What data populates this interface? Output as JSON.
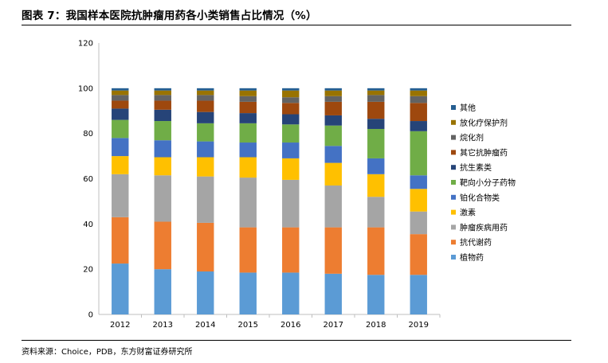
{
  "title": "图表 7：我国样本医院抗肿瘤用药各小类销售占比情况（%）",
  "source": "资料来源：Choice，PDB，东方财富证券研究所",
  "chart_data": {
    "type": "bar",
    "stacked": true,
    "categories": [
      "2012",
      "2013",
      "2014",
      "2015",
      "2016",
      "2017",
      "2018",
      "2019"
    ],
    "ylim": [
      0,
      120
    ],
    "yticks": [
      "0",
      "20",
      "40",
      "60",
      "80",
      "100",
      "120"
    ],
    "grid": false,
    "legend_position": "right",
    "series": [
      {
        "name": "植物药",
        "color": "#5B9BD5",
        "values": [
          22.5,
          20.0,
          19.0,
          18.5,
          18.5,
          18.0,
          17.5,
          17.5
        ]
      },
      {
        "name": "抗代谢药",
        "color": "#ED7D31",
        "values": [
          20.5,
          21.0,
          21.5,
          20.0,
          20.0,
          20.5,
          21.0,
          18.0
        ]
      },
      {
        "name": "肿瘤疾病用药",
        "color": "#A5A5A5",
        "values": [
          19.0,
          20.5,
          20.5,
          22.0,
          21.0,
          18.5,
          13.5,
          10.0
        ]
      },
      {
        "name": "激素",
        "color": "#FFC000",
        "values": [
          8.0,
          8.0,
          8.5,
          9.0,
          9.5,
          10.0,
          10.0,
          10.0
        ]
      },
      {
        "name": "铂化合物类",
        "color": "#4472C4",
        "values": [
          8.0,
          7.5,
          7.0,
          6.5,
          7.0,
          7.5,
          7.0,
          6.0
        ]
      },
      {
        "name": "靶向小分子药物",
        "color": "#70AD47",
        "values": [
          8.0,
          8.5,
          8.0,
          8.5,
          8.0,
          9.0,
          13.0,
          19.5
        ]
      },
      {
        "name": "抗生素类",
        "color": "#264478",
        "values": [
          5.0,
          5.0,
          5.0,
          4.5,
          4.5,
          4.5,
          4.5,
          4.5
        ]
      },
      {
        "name": "其它抗肿瘤药",
        "color": "#9E480E",
        "values": [
          3.5,
          4.0,
          5.0,
          5.0,
          5.0,
          6.0,
          7.5,
          8.0
        ]
      },
      {
        "name": "烷化剂",
        "color": "#636363",
        "values": [
          2.5,
          2.5,
          2.5,
          2.5,
          2.5,
          2.5,
          3.0,
          3.0
        ]
      },
      {
        "name": "放化疗保护剂",
        "color": "#997300",
        "values": [
          2.0,
          2.0,
          2.0,
          2.5,
          3.0,
          2.5,
          2.0,
          2.5
        ]
      },
      {
        "name": "其他",
        "color": "#255E91",
        "values": [
          1.0,
          1.0,
          1.0,
          1.0,
          1.0,
          1.0,
          1.0,
          1.0
        ]
      }
    ]
  }
}
